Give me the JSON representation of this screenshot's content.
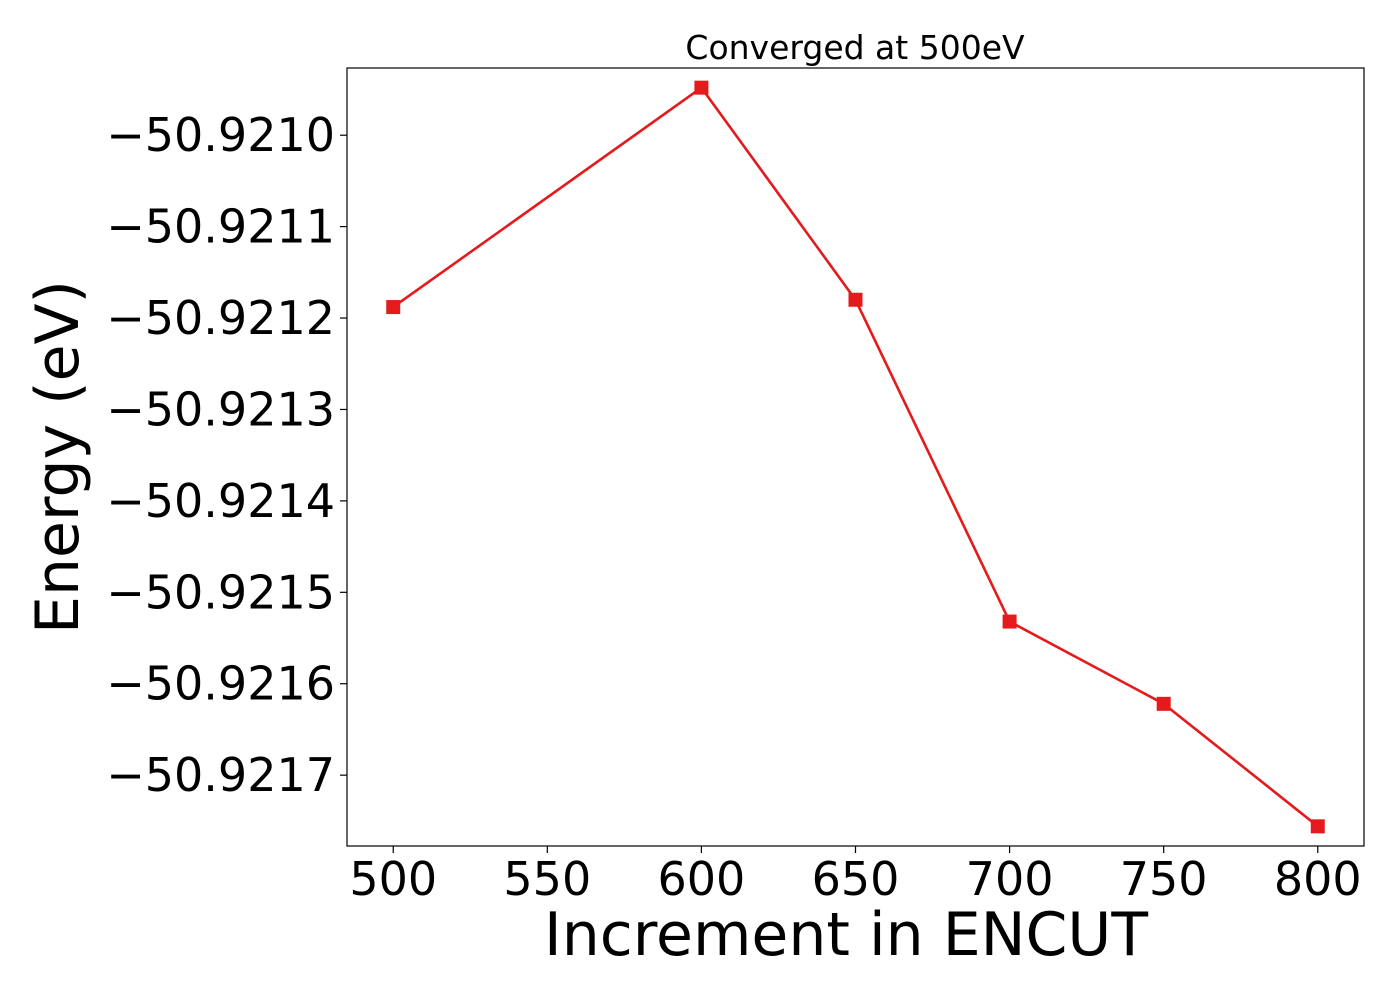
{
  "chart_data": {
    "type": "line",
    "title": "Converged at 500eV",
    "xlabel": "Increment in ENCUT",
    "ylabel": "Energy (eV)",
    "x": [
      500,
      600,
      650,
      700,
      750,
      800
    ],
    "series": [
      {
        "values": [
          -50.921188,
          -50.920948,
          -50.92118,
          -50.921532,
          -50.921622,
          -50.921756
        ],
        "color": "#e41a1c",
        "marker": "square"
      }
    ],
    "xticks": [
      500,
      550,
      600,
      650,
      700,
      750,
      800
    ],
    "xtick_labels": [
      "500",
      "550",
      "600",
      "650",
      "700",
      "750",
      "800"
    ],
    "yticks": [
      -50.921,
      -50.9211,
      -50.9212,
      -50.9213,
      -50.9214,
      -50.9215,
      -50.9216,
      -50.9217
    ],
    "ytick_labels": [
      "−50.9210",
      "−50.9211",
      "−50.9212",
      "−50.9213",
      "−50.9214",
      "−50.9215",
      "−50.9216",
      "−50.9217"
    ],
    "xlim": [
      485,
      815
    ],
    "ylim": [
      -50.9217775,
      -50.9209265
    ],
    "grid": false,
    "legend": "none"
  }
}
